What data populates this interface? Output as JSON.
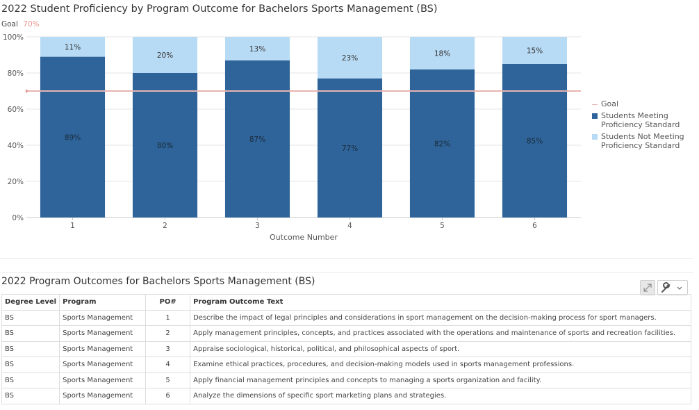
{
  "chart_data": {
    "type": "bar",
    "stacked": true,
    "title": "2022 Student Proficiency by Program Outcome for Bachelors Sports Management (BS)",
    "goal_label": "Goal",
    "goal_value_label": "70%",
    "goal": 70,
    "categories": [
      "1",
      "2",
      "3",
      "4",
      "5",
      "6"
    ],
    "series": [
      {
        "name": "Students Meeting Proficiency Standard",
        "values": [
          89,
          80,
          87,
          77,
          82,
          85
        ],
        "labels": [
          "89%",
          "80%",
          "87%",
          "77%",
          "82%",
          "85%"
        ],
        "color": "#2e6499"
      },
      {
        "name": "Students Not Meeting Proficiency Standard",
        "values": [
          11,
          20,
          13,
          23,
          18,
          15
        ],
        "labels": [
          "11%",
          "20%",
          "13%",
          "23%",
          "18%",
          "15%"
        ],
        "color": "#b8dbf5"
      }
    ],
    "goal_line_color": "#e8b4b2",
    "xlabel": "Outcome Number",
    "ylabel": "",
    "ylim": [
      0,
      100
    ],
    "yticks": [
      0,
      20,
      40,
      60,
      80,
      100
    ],
    "ytick_labels": [
      "0%",
      "20%",
      "40%",
      "60%",
      "80%",
      "100%"
    ],
    "grid": true,
    "legend_position": "right"
  },
  "legend": {
    "goal": "Goal",
    "meeting": "Students Meeting Proficiency Standard",
    "not_meeting": "Students Not Meeting Proficiency Standard"
  },
  "table": {
    "title": "2022 Program Outcomes for Bachelors Sports Management (BS)",
    "tools": [
      "expand-icon",
      "wrench-icon",
      "chevron-down-icon"
    ],
    "headers": [
      "Degree Level",
      "Program",
      "PO#",
      "Program Outcome Text"
    ],
    "rows": [
      [
        "BS",
        "Sports Management",
        "1",
        "Describe the impact of legal principles and considerations in sport management on the decision-making process for sport managers."
      ],
      [
        "BS",
        "Sports Management",
        "2",
        "Apply management principles, concepts, and practices associated with the operations and maintenance of sports and recreation facilities."
      ],
      [
        "BS",
        "Sports Management",
        "3",
        "Appraise sociological, historical, political, and philosophical aspects of sport."
      ],
      [
        "BS",
        "Sports Management",
        "4",
        "Examine ethical practices, procedures, and decision-making models used in sports management professions."
      ],
      [
        "BS",
        "Sports Management",
        "5",
        "Apply financial management principles and concepts to managing a sports organization and facility."
      ],
      [
        "BS",
        "Sports Management",
        "6",
        "Analyze the dimensions of specific sport marketing plans and strategies."
      ]
    ]
  }
}
